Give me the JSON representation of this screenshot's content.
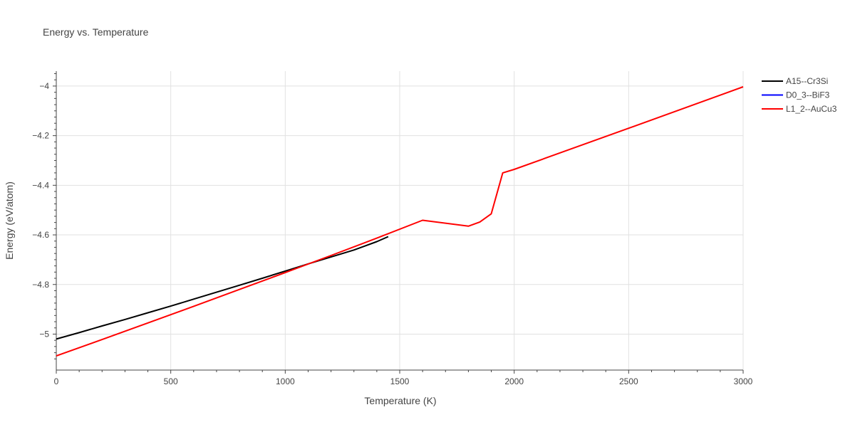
{
  "chart_data": {
    "type": "line",
    "title": "Energy vs. Temperature",
    "xlabel": "Temperature (K)",
    "ylabel": "Energy (eV/atom)",
    "xlim": [
      0,
      3000
    ],
    "ylim": [
      -5.145,
      -3.94
    ],
    "x_ticks": [
      0,
      500,
      1000,
      1500,
      2000,
      2500,
      3000
    ],
    "x_tick_labels": [
      "0",
      "500",
      "1000",
      "1500",
      "2000",
      "2500",
      "3000"
    ],
    "y_ticks": [
      -5,
      -4.8,
      -4.6,
      -4.4,
      -4.2,
      -4
    ],
    "y_tick_labels": [
      "−5",
      "−4.8",
      "−4.6",
      "−4.4",
      "−4.2",
      "−4"
    ],
    "grid": true,
    "legend_position": "top-right",
    "series": [
      {
        "name": "A15--Cr3Si",
        "color": "#000000",
        "x": [
          0,
          100,
          200,
          300,
          400,
          500,
          600,
          700,
          800,
          900,
          1000,
          1100,
          1200,
          1300,
          1400,
          1450
        ],
        "y": [
          -5.02,
          -4.994,
          -4.967,
          -4.941,
          -4.914,
          -4.887,
          -4.859,
          -4.831,
          -4.803,
          -4.775,
          -4.746,
          -4.717,
          -4.689,
          -4.661,
          -4.627,
          -4.607
        ]
      },
      {
        "name": "D0_3--BiF3",
        "color": "#0000ff",
        "x": [],
        "y": []
      },
      {
        "name": "L1_2--AuCu3",
        "color": "#ff0000",
        "x": [
          0,
          200,
          400,
          600,
          800,
          1000,
          1200,
          1400,
          1600,
          1800,
          1850,
          1900,
          1950,
          2000,
          2500,
          3000
        ],
        "y": [
          -5.088,
          -5.022,
          -4.955,
          -4.888,
          -4.82,
          -4.752,
          -4.683,
          -4.613,
          -4.541,
          -4.565,
          -4.548,
          -4.515,
          -4.35,
          -4.336,
          -4.17,
          -4.003
        ]
      }
    ]
  }
}
